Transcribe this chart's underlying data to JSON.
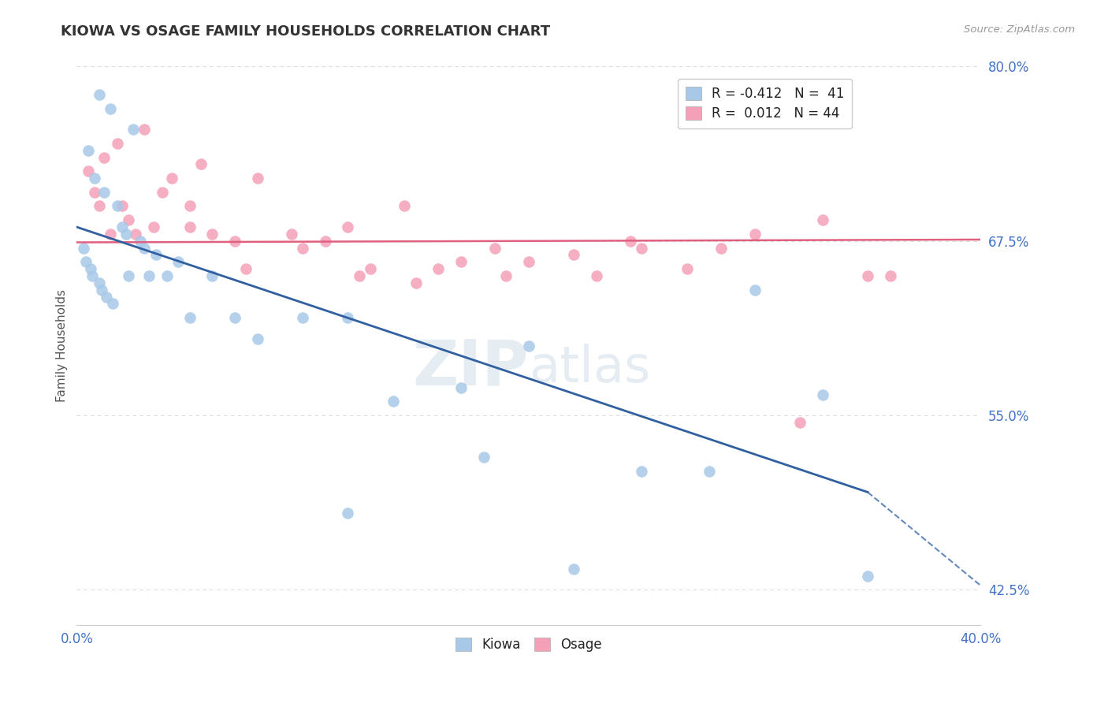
{
  "title": "KIOWA VS OSAGE FAMILY HOUSEHOLDS CORRELATION CHART",
  "source": "Source: ZipAtlas.com",
  "xlabel": "",
  "ylabel": "Family Households",
  "xlim": [
    0.0,
    40.0
  ],
  "ylim": [
    40.0,
    80.0
  ],
  "yticks": [
    42.5,
    55.0,
    67.5,
    80.0
  ],
  "xtick_labels_left": "0.0%",
  "xtick_labels_right": "40.0%",
  "ytick_labels": [
    "42.5%",
    "55.0%",
    "67.5%",
    "80.0%"
  ],
  "kiowa_R": -0.412,
  "kiowa_N": 41,
  "osage_R": 0.012,
  "osage_N": 44,
  "kiowa_color": "#a8c8e8",
  "osage_color": "#f4a0b8",
  "kiowa_line_color": "#3060a0",
  "osage_line_color": "#e06080",
  "background_color": "#ffffff",
  "grid_color": "#dddddd",
  "watermark_zip": "ZIP",
  "watermark_atlas": "atlas",
  "kiowa_line_x0": 0.0,
  "kiowa_line_y0": 68.5,
  "kiowa_line_x1": 35.0,
  "kiowa_line_y1": 49.5,
  "kiowa_line_dash_x0": 35.0,
  "kiowa_line_dash_y0": 49.5,
  "kiowa_line_dash_x1": 40.0,
  "kiowa_line_dash_y1": 42.8,
  "osage_line_x0": 0.0,
  "osage_line_y0": 67.4,
  "osage_line_x1": 40.0,
  "osage_line_y1": 67.6,
  "kiowa_x": [
    1.0,
    1.5,
    2.5,
    0.5,
    0.8,
    1.2,
    1.8,
    2.0,
    2.2,
    2.8,
    3.0,
    3.5,
    4.0,
    0.3,
    0.4,
    0.6,
    0.7,
    1.0,
    1.1,
    1.3,
    1.6,
    2.3,
    3.2,
    4.5,
    5.0,
    6.0,
    7.0,
    8.0,
    10.0,
    12.0,
    14.0,
    17.0,
    20.0,
    22.0,
    25.0,
    28.0,
    30.0,
    33.0,
    35.0,
    12.0,
    18.0
  ],
  "kiowa_y": [
    78.0,
    77.0,
    75.5,
    74.0,
    72.0,
    71.0,
    70.0,
    68.5,
    68.0,
    67.5,
    67.0,
    66.5,
    65.0,
    67.0,
    66.0,
    65.5,
    65.0,
    64.5,
    64.0,
    63.5,
    63.0,
    65.0,
    65.0,
    66.0,
    62.0,
    65.0,
    62.0,
    60.5,
    62.0,
    62.0,
    56.0,
    57.0,
    60.0,
    44.0,
    51.0,
    51.0,
    64.0,
    56.5,
    43.5,
    48.0,
    52.0
  ],
  "osage_x": [
    0.5,
    0.8,
    1.0,
    1.2,
    1.5,
    1.8,
    2.0,
    2.3,
    2.6,
    3.0,
    3.4,
    3.8,
    4.2,
    5.0,
    5.5,
    6.0,
    7.0,
    8.0,
    9.5,
    11.0,
    12.0,
    13.0,
    14.5,
    16.0,
    17.0,
    18.5,
    20.0,
    22.0,
    24.5,
    27.0,
    30.0,
    33.0,
    5.0,
    10.0,
    15.0,
    25.0,
    35.0,
    7.5,
    12.5,
    19.0,
    23.0,
    28.5,
    32.0,
    36.0
  ],
  "osage_y": [
    72.5,
    71.0,
    70.0,
    73.5,
    68.0,
    74.5,
    70.0,
    69.0,
    68.0,
    75.5,
    68.5,
    71.0,
    72.0,
    70.0,
    73.0,
    68.0,
    67.5,
    72.0,
    68.0,
    67.5,
    68.5,
    65.5,
    70.0,
    65.5,
    66.0,
    67.0,
    66.0,
    66.5,
    67.5,
    65.5,
    68.0,
    69.0,
    68.5,
    67.0,
    64.5,
    67.0,
    65.0,
    65.5,
    65.0,
    65.0,
    65.0,
    67.0,
    54.5,
    65.0
  ]
}
